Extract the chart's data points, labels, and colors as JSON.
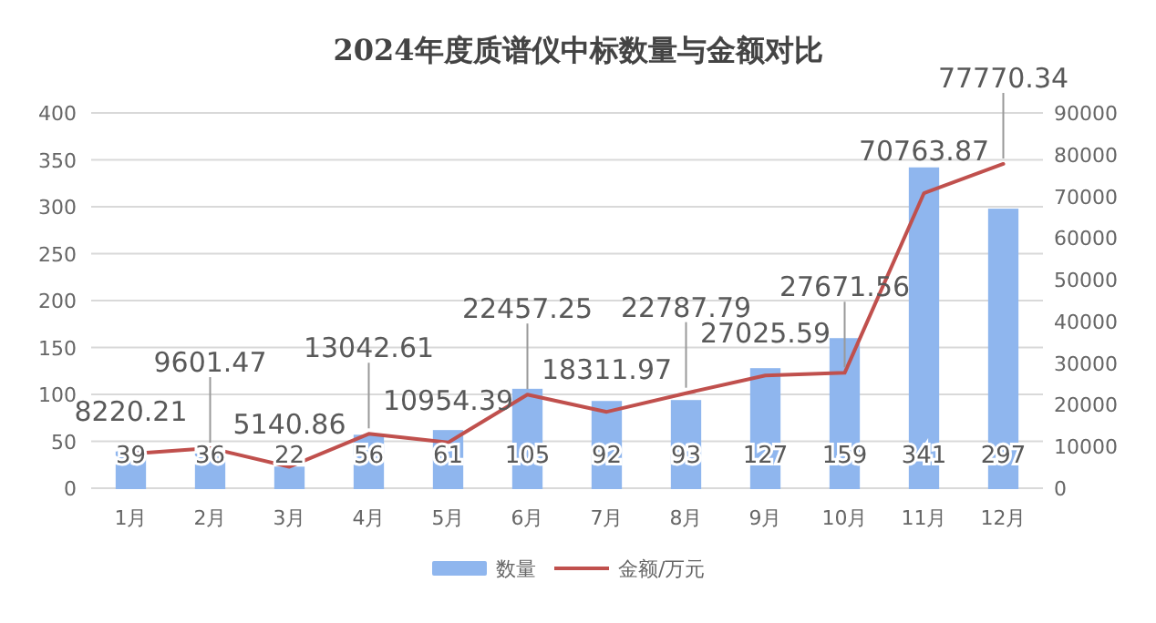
{
  "chart_data": {
    "type": "bar",
    "title": "2024年度质谱仪中标数量与金额对比",
    "categories": [
      "1月",
      "2月",
      "3月",
      "4月",
      "5月",
      "6月",
      "7月",
      "8月",
      "9月",
      "10月",
      "11月",
      "12月"
    ],
    "series": [
      {
        "name": "数量",
        "color": "#8fb6ee",
        "values": [
          39,
          36,
          22,
          56,
          61,
          105,
          92,
          93,
          127,
          159,
          341,
          297
        ]
      },
      {
        "name": "金额/万元",
        "type": "line",
        "axis": "y2",
        "color": "#c0504d",
        "values": [
          8220.21,
          9601.47,
          5140.86,
          13042.61,
          10954.39,
          22457.25,
          18311.97,
          22787.79,
          27025.59,
          27671.56,
          70763.87,
          77770.34
        ]
      }
    ],
    "ylim": [
      0,
      400
    ],
    "yticks": [
      0,
      50,
      100,
      150,
      200,
      250,
      300,
      350,
      400
    ],
    "y2lim": [
      0,
      90000
    ],
    "y2ticks": [
      0,
      10000,
      20000,
      30000,
      40000,
      50000,
      60000,
      70000,
      80000,
      90000
    ],
    "grid": "y",
    "legend": "bottom",
    "data_labels": true
  }
}
